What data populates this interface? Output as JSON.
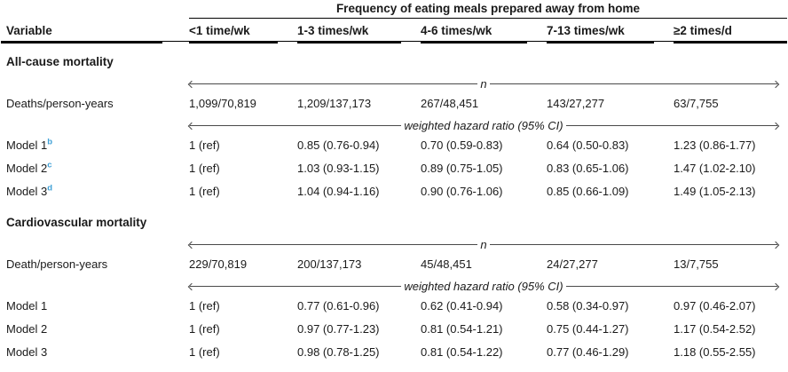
{
  "colors": {
    "footnote_blue": "#3fa0d6",
    "rule_black": "#000000",
    "text": "#1a1a1a"
  },
  "table": {
    "spanner_title": "Frequency of eating meals prepared away from home",
    "headers": [
      "Variable",
      "<1 time/wk",
      "1-3 times/wk",
      "4-6 times/wk",
      "7-13 times/wk",
      "≥2 times/d"
    ],
    "all_cause": {
      "title": "All-cause mortality",
      "n_label": "n",
      "hr_label": "weighted hazard ratio (95% CI)",
      "counts": {
        "label": "Deaths/person-years",
        "values": [
          "1,099/70,819",
          "1,209/137,173",
          "267/48,451",
          "143/27,277",
          "63/7,755"
        ]
      },
      "model1": {
        "label": "Model 1",
        "sup": "b",
        "values": [
          "1 (ref)",
          "0.85 (0.76-0.94)",
          "0.70 (0.59-0.83)",
          "0.64 (0.50-0.83)",
          "1.23 (0.86-1.77)"
        ]
      },
      "model2": {
        "label": "Model 2",
        "sup": "c",
        "values": [
          "1 (ref)",
          "1.03 (0.93-1.15)",
          "0.89 (0.75-1.05)",
          "0.83 (0.65-1.06)",
          "1.47 (1.02-2.10)"
        ]
      },
      "model3": {
        "label": "Model 3",
        "sup": "d",
        "values": [
          "1 (ref)",
          "1.04 (0.94-1.16)",
          "0.90 (0.76-1.06)",
          "0.85 (0.66-1.09)",
          "1.49 (1.05-2.13)"
        ]
      }
    },
    "cardiovascular": {
      "title": "Cardiovascular mortality",
      "n_label": "n",
      "hr_label": "weighted hazard ratio (95% CI)",
      "counts": {
        "label": "Death/person-years",
        "values": [
          "229/70,819",
          "200/137,173",
          "45/48,451",
          "24/27,277",
          "13/7,755"
        ]
      },
      "model1": {
        "label": "Model 1",
        "values": [
          "1 (ref)",
          "0.77 (0.61-0.96)",
          "0.62 (0.41-0.94)",
          "0.58 (0.34-0.97)",
          "0.97 (0.46-2.07)"
        ]
      },
      "model2": {
        "label": "Model 2",
        "values": [
          "1 (ref)",
          "0.97 (0.77-1.23)",
          "0.81 (0.54-1.21)",
          "0.75 (0.44-1.27)",
          "1.17 (0.54-2.52)"
        ]
      },
      "model3": {
        "label": "Model 3",
        "values": [
          "1 (ref)",
          "0.98 (0.78-1.25)",
          "0.81 (0.54-1.22)",
          "0.77 (0.46-1.29)",
          "1.18 (0.55-2.55)"
        ]
      }
    }
  }
}
